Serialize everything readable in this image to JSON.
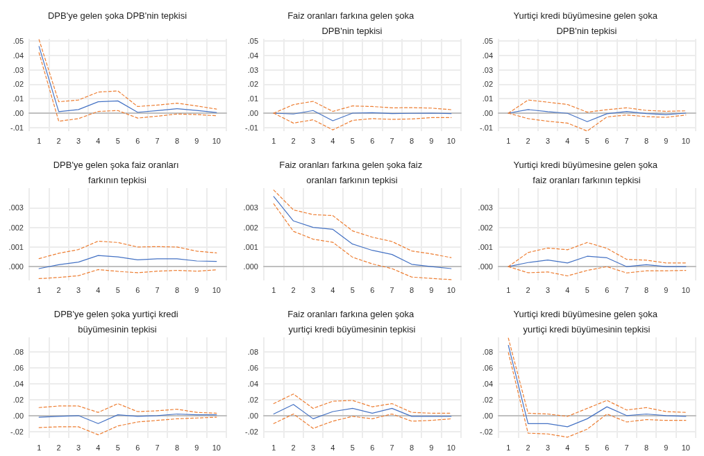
{
  "chart_data": [
    {
      "type": "line",
      "title": "DPB'ye gelen şoka DPB'nin tepkisi",
      "categories": [
        "1",
        "2",
        "3",
        "4",
        "5",
        "6",
        "7",
        "8",
        "9",
        "10"
      ],
      "ylim": [
        -0.0125,
        0.0515
      ],
      "yticks": [
        {
          "value": -0.01,
          "label": "-.01"
        },
        {
          "value": 0,
          "label": ".00"
        },
        {
          "value": 0.01,
          "label": ".01"
        },
        {
          "value": 0.02,
          "label": ".02"
        },
        {
          "value": 0.03,
          "label": ".03"
        },
        {
          "value": 0.04,
          "label": ".04"
        },
        {
          "value": 0.05,
          "label": ".05"
        }
      ],
      "grid": true,
      "marker": "none",
      "series": [
        {
          "color": "#4472c4",
          "line_style": "solid",
          "values": [
            0.0463,
            0.001,
            0.0025,
            0.0079,
            0.0085,
            0.0006,
            0.0018,
            0.0031,
            0.0019,
            0.0004
          ]
        },
        {
          "color": "#ed7d31",
          "line_style": "dashed",
          "values": [
            0.051,
            0.0079,
            0.0091,
            0.0146,
            0.0154,
            0.0046,
            0.0056,
            0.0069,
            0.005,
            0.0028
          ]
        },
        {
          "color": "#ed7d31",
          "line_style": "dashed",
          "values": [
            0.0419,
            -0.0056,
            -0.0038,
            0.0012,
            0.0018,
            -0.0034,
            -0.0021,
            -0.0006,
            -0.001,
            -0.0018
          ]
        }
      ]
    },
    {
      "type": "line",
      "title": "Faiz oranları farkına gelen şoka DPB'nin tepkisi",
      "categories": [
        "1",
        "2",
        "3",
        "4",
        "5",
        "6",
        "7",
        "8",
        "9",
        "10"
      ],
      "ylim": [
        -0.0125,
        0.0515
      ],
      "yticks": [
        {
          "value": -0.01,
          "label": "-.01"
        },
        {
          "value": 0,
          "label": ".00"
        },
        {
          "value": 0.01,
          "label": ".01"
        },
        {
          "value": 0.02,
          "label": ".02"
        },
        {
          "value": 0.03,
          "label": ".03"
        },
        {
          "value": 0.04,
          "label": ".04"
        },
        {
          "value": 0.05,
          "label": ".05"
        }
      ],
      "grid": true,
      "marker": "none",
      "series": [
        {
          "color": "#4472c4",
          "line_style": "solid",
          "values": [
            0,
            -0.0006,
            0.0018,
            -0.0053,
            0,
            0.0003,
            -0.0003,
            -0.0001,
            0,
            -0.0003
          ]
        },
        {
          "color": "#ed7d31",
          "line_style": "dashed",
          "values": [
            0,
            0.0059,
            0.0082,
            0.0012,
            0.005,
            0.0046,
            0.0037,
            0.0038,
            0.0035,
            0.0024
          ]
        },
        {
          "color": "#ed7d31",
          "line_style": "dashed",
          "values": [
            0,
            -0.0069,
            -0.0046,
            -0.0116,
            -0.005,
            -0.0038,
            -0.0043,
            -0.004,
            -0.0031,
            -0.0031
          ]
        }
      ]
    },
    {
      "type": "line",
      "title": "Yurtiçi kredi büyümesine gelen şoka DPB'nin tepkisi",
      "categories": [
        "1",
        "2",
        "3",
        "4",
        "5",
        "6",
        "7",
        "8",
        "9",
        "10"
      ],
      "ylim": [
        -0.0125,
        0.0515
      ],
      "yticks": [
        {
          "value": -0.01,
          "label": "-.01"
        },
        {
          "value": 0,
          "label": ".00"
        },
        {
          "value": 0.01,
          "label": ".01"
        },
        {
          "value": 0.02,
          "label": ".02"
        },
        {
          "value": 0.03,
          "label": ".03"
        },
        {
          "value": 0.04,
          "label": ".04"
        },
        {
          "value": 0.05,
          "label": ".05"
        }
      ],
      "grid": true,
      "marker": "none",
      "series": [
        {
          "color": "#4472c4",
          "line_style": "solid",
          "values": [
            0,
            0.0025,
            0.001,
            -0.0001,
            -0.0059,
            -0.0004,
            0.0012,
            -0.0003,
            -0.001,
            0
          ]
        },
        {
          "color": "#ed7d31",
          "line_style": "dashed",
          "values": [
            0,
            0.0091,
            0.0076,
            0.006,
            0.0007,
            0.0024,
            0.0037,
            0.0019,
            0.0013,
            0.0016
          ]
        },
        {
          "color": "#ed7d31",
          "line_style": "dashed",
          "values": [
            0,
            -0.0038,
            -0.0056,
            -0.0069,
            -0.0124,
            -0.0026,
            -0.0013,
            -0.0024,
            -0.0029,
            -0.0013
          ]
        }
      ]
    },
    {
      "type": "line",
      "title": "DPB'ye gelen şoka faiz oranları farkının tepkisi",
      "categories": [
        "1",
        "2",
        "3",
        "4",
        "5",
        "6",
        "7",
        "8",
        "9",
        "10"
      ],
      "ylim": [
        -0.0007,
        0.004
      ],
      "yticks": [
        {
          "value": 0,
          "label": ".000"
        },
        {
          "value": 0.001,
          "label": ".001"
        },
        {
          "value": 0.002,
          "label": ".002"
        },
        {
          "value": 0.003,
          "label": ".003"
        }
      ],
      "grid": true,
      "marker": "none",
      "series": [
        {
          "color": "#4472c4",
          "line_style": "solid",
          "values": [
            -0.0001,
            0.0001,
            0.00023,
            0.00057,
            0.0005,
            0.00035,
            0.0004,
            0.0004,
            0.00029,
            0.00027
          ]
        },
        {
          "color": "#ed7d31",
          "line_style": "dashed",
          "values": [
            0.00041,
            0.00068,
            0.00087,
            0.0013,
            0.00123,
            0.001,
            0.00102,
            0.001,
            0.00079,
            0.0007
          ]
        },
        {
          "color": "#ed7d31",
          "line_style": "dashed",
          "values": [
            -0.00061,
            -0.00055,
            -0.00046,
            -0.00015,
            -0.00024,
            -0.00031,
            -0.00023,
            -0.00019,
            -0.00023,
            -0.00016
          ]
        }
      ]
    },
    {
      "type": "line",
      "title": "Faiz oranları farkına gelen şoka faiz oranları farkının tepkisi",
      "categories": [
        "1",
        "2",
        "3",
        "4",
        "5",
        "6",
        "7",
        "8",
        "9",
        "10"
      ],
      "ylim": [
        -0.0007,
        0.004
      ],
      "yticks": [
        {
          "value": 0,
          "label": ".000"
        },
        {
          "value": 0.001,
          "label": ".001"
        },
        {
          "value": 0.002,
          "label": ".002"
        },
        {
          "value": 0.003,
          "label": ".003"
        }
      ],
      "grid": true,
      "marker": "none",
      "series": [
        {
          "color": "#4472c4",
          "line_style": "solid",
          "values": [
            0.00357,
            0.00233,
            0.002,
            0.0019,
            0.00115,
            0.00083,
            0.00062,
            0.00012,
            0,
            -0.0001
          ]
        },
        {
          "color": "#ed7d31",
          "line_style": "dashed",
          "values": [
            0.0039,
            0.00289,
            0.00265,
            0.0026,
            0.00182,
            0.0015,
            0.00128,
            0.0008,
            0.00065,
            0.00046
          ]
        },
        {
          "color": "#ed7d31",
          "line_style": "dashed",
          "values": [
            0.0032,
            0.0018,
            0.0014,
            0.00124,
            0.00048,
            0.00014,
            -0.0001,
            -0.00053,
            -0.0006,
            -0.00066
          ]
        }
      ]
    },
    {
      "type": "line",
      "title": "Yurtiçi kredi büyümesine gelen şoka faiz oranları farkının tepkisi",
      "categories": [
        "1",
        "2",
        "3",
        "4",
        "5",
        "6",
        "7",
        "8",
        "9",
        "10"
      ],
      "ylim": [
        -0.0007,
        0.004
      ],
      "yticks": [
        {
          "value": 0,
          "label": ".000"
        },
        {
          "value": 0.001,
          "label": ".001"
        },
        {
          "value": 0.002,
          "label": ".002"
        },
        {
          "value": 0.003,
          "label": ".003"
        }
      ],
      "grid": true,
      "marker": "none",
      "series": [
        {
          "color": "#4472c4",
          "line_style": "solid",
          "values": [
            0,
            0.00021,
            0.00034,
            0.00019,
            0.00053,
            0.00045,
            0,
            0.0001,
            0,
            0
          ]
        },
        {
          "color": "#ed7d31",
          "line_style": "dashed",
          "values": [
            0,
            0.00072,
            0.00095,
            0.00086,
            0.00123,
            0.00093,
            0.00037,
            0.00033,
            0.00019,
            0.00019
          ]
        },
        {
          "color": "#ed7d31",
          "line_style": "dashed",
          "values": [
            0,
            -0.00031,
            -0.00027,
            -0.00047,
            -0.00019,
            0,
            -0.00032,
            -0.00021,
            -0.00021,
            -0.00019
          ]
        }
      ]
    },
    {
      "type": "line",
      "title": "DPB'ye gelen şoka yurtiçi kredi büyümesinin tepkisi",
      "categories": [
        "1",
        "2",
        "3",
        "4",
        "5",
        "6",
        "7",
        "8",
        "9",
        "10"
      ],
      "ylim": [
        -0.028,
        0.098
      ],
      "yticks": [
        {
          "value": -0.02,
          "label": "-.02"
        },
        {
          "value": 0,
          "label": ".00"
        },
        {
          "value": 0.02,
          "label": ".02"
        },
        {
          "value": 0.04,
          "label": ".04"
        },
        {
          "value": 0.06,
          "label": ".06"
        },
        {
          "value": 0.08,
          "label": ".08"
        }
      ],
      "grid": true,
      "marker": "none",
      "series": [
        {
          "color": "#4472c4",
          "line_style": "solid",
          "values": [
            -0.002,
            -0.001,
            0,
            -0.01,
            0.001,
            -0.001,
            0,
            0.002,
            0.001,
            0.001
          ]
        },
        {
          "color": "#ed7d31",
          "line_style": "dashed",
          "values": [
            0.01,
            0.012,
            0.012,
            0.004,
            0.015,
            0.005,
            0.006,
            0.008,
            0.004,
            0.003
          ]
        },
        {
          "color": "#ed7d31",
          "line_style": "dashed",
          "values": [
            -0.015,
            -0.014,
            -0.014,
            -0.024,
            -0.013,
            -0.008,
            -0.006,
            -0.004,
            -0.003,
            -0.002
          ]
        }
      ]
    },
    {
      "type": "line",
      "title": "Faiz oranları farkına gelen şoka yurtiçi kredi büyümesinin tepkisi",
      "categories": [
        "1",
        "2",
        "3",
        "4",
        "5",
        "6",
        "7",
        "8",
        "9",
        "10"
      ],
      "ylim": [
        -0.028,
        0.098
      ],
      "yticks": [
        {
          "value": -0.02,
          "label": "-.02"
        },
        {
          "value": 0,
          "label": ".00"
        },
        {
          "value": 0.02,
          "label": ".02"
        },
        {
          "value": 0.04,
          "label": ".04"
        },
        {
          "value": 0.06,
          "label": ".06"
        },
        {
          "value": 0.08,
          "label": ".08"
        }
      ],
      "grid": true,
      "marker": "none",
      "series": [
        {
          "color": "#4472c4",
          "line_style": "solid",
          "values": [
            0.002,
            0.014,
            -0.004,
            0.005,
            0.009,
            0.003,
            0.009,
            -0.001,
            -0.001,
            -0.001
          ]
        },
        {
          "color": "#ed7d31",
          "line_style": "dashed",
          "values": [
            0.015,
            0.027,
            0.009,
            0.018,
            0.019,
            0.011,
            0.015,
            0.004,
            0.003,
            0.003
          ]
        },
        {
          "color": "#ed7d31",
          "line_style": "dashed",
          "values": [
            -0.01,
            0.002,
            -0.016,
            -0.007,
            -0.001,
            -0.004,
            0.002,
            -0.007,
            -0.006,
            -0.004
          ]
        }
      ]
    },
    {
      "type": "line",
      "title": "Yurtiçi kredi büyümesine gelen şoka yurtiçi kredi büyümesinin tepkisi",
      "categories": [
        "1",
        "2",
        "3",
        "4",
        "5",
        "6",
        "7",
        "8",
        "9",
        "10"
      ],
      "ylim": [
        -0.028,
        0.098
      ],
      "yticks": [
        {
          "value": -0.02,
          "label": "-.02"
        },
        {
          "value": 0,
          "label": ".00"
        },
        {
          "value": 0.02,
          "label": ".02"
        },
        {
          "value": 0.04,
          "label": ".04"
        },
        {
          "value": 0.06,
          "label": ".06"
        },
        {
          "value": 0.08,
          "label": ".08"
        }
      ],
      "grid": true,
      "marker": "none",
      "series": [
        {
          "color": "#4472c4",
          "line_style": "solid",
          "values": [
            0.088,
            -0.01,
            -0.01,
            -0.014,
            -0.004,
            0.011,
            0,
            0.002,
            0,
            -0.001
          ]
        },
        {
          "color": "#ed7d31",
          "line_style": "dashed",
          "values": [
            0.097,
            0.003,
            0.002,
            -0.001,
            0.009,
            0.019,
            0.007,
            0.01,
            0.005,
            0.004
          ]
        },
        {
          "color": "#ed7d31",
          "line_style": "dashed",
          "values": [
            0.079,
            -0.022,
            -0.023,
            -0.027,
            -0.017,
            0.002,
            -0.008,
            -0.005,
            -0.006,
            -0.006
          ]
        }
      ]
    }
  ]
}
